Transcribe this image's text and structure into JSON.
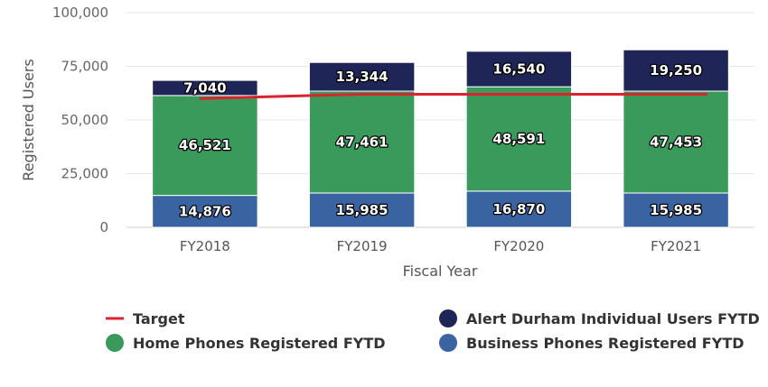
{
  "chart_data": {
    "type": "bar",
    "stacked": true,
    "categories": [
      "FY2018",
      "FY2019",
      "FY2020",
      "FY2021"
    ],
    "series": [
      {
        "name": "Business Phones Registered FYTD",
        "color": "#3a64a1",
        "values": [
          14876,
          15985,
          16870,
          15985
        ]
      },
      {
        "name": "Home Phones Registered FYTD",
        "color": "#3a9a5c",
        "values": [
          46521,
          47461,
          48591,
          47453
        ]
      },
      {
        "name": "Alert Durham Individual Users FYTD",
        "color": "#1f2657",
        "values": [
          7040,
          13344,
          16540,
          19250
        ]
      }
    ],
    "line_series": {
      "name": "Target",
      "type": "line",
      "color": "#d9232e",
      "values": [
        60000,
        62000,
        62000,
        62000
      ]
    },
    "data_labels": [
      [
        "14,876",
        "15,985",
        "16,870",
        "15,985"
      ],
      [
        "46,521",
        "47,461",
        "48,591",
        "47,453"
      ],
      [
        "7,040",
        "13,344",
        "16,540",
        "19,250"
      ]
    ],
    "xlabel": "Fiscal Year",
    "ylabel": "Registered Users",
    "ylim": [
      0,
      100000
    ],
    "yticks": [
      0,
      25000,
      50000,
      75000,
      100000
    ],
    "ytick_labels": [
      "0",
      "25,000",
      "50,000",
      "75,000",
      "100,000"
    ],
    "grid": true,
    "legend_position": "bottom"
  },
  "legend": [
    {
      "label": "Target",
      "color": "#d9232e",
      "symbol": "line"
    },
    {
      "label": "Alert Durham Individual Users FYTD",
      "color": "#1f2657",
      "symbol": "circle"
    },
    {
      "label": "Home Phones Registered FYTD",
      "color": "#3a9a5c",
      "symbol": "circle"
    },
    {
      "label": "Business Phones Registered FYTD",
      "color": "#3a64a1",
      "symbol": "circle"
    }
  ]
}
